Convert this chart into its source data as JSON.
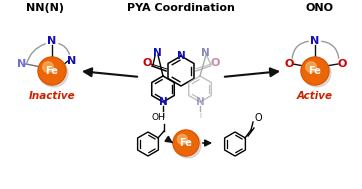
{
  "title_center": "PYA Coordination",
  "title_left": "NN(N)",
  "title_right": "ONO",
  "label_inactive": "Inactive",
  "label_active": "Active",
  "fe_color_outer": "#E06000",
  "fe_color_inner": "#F59030",
  "fe_highlight": "#F8B060",
  "bg_color": "#FFFFFF",
  "n_color": "#1010BB",
  "o_color_left": "#CC0000",
  "o_color_right": "#CC88AA",
  "o_color_coord": "#CC0000",
  "inactive_color": "#CC2200",
  "active_color": "#CC2200",
  "arrow_color": "#111111",
  "bond_color": "#111111",
  "bond_color_ghost": "#AAAAAA",
  "n_color_ghost": "#8888BB"
}
